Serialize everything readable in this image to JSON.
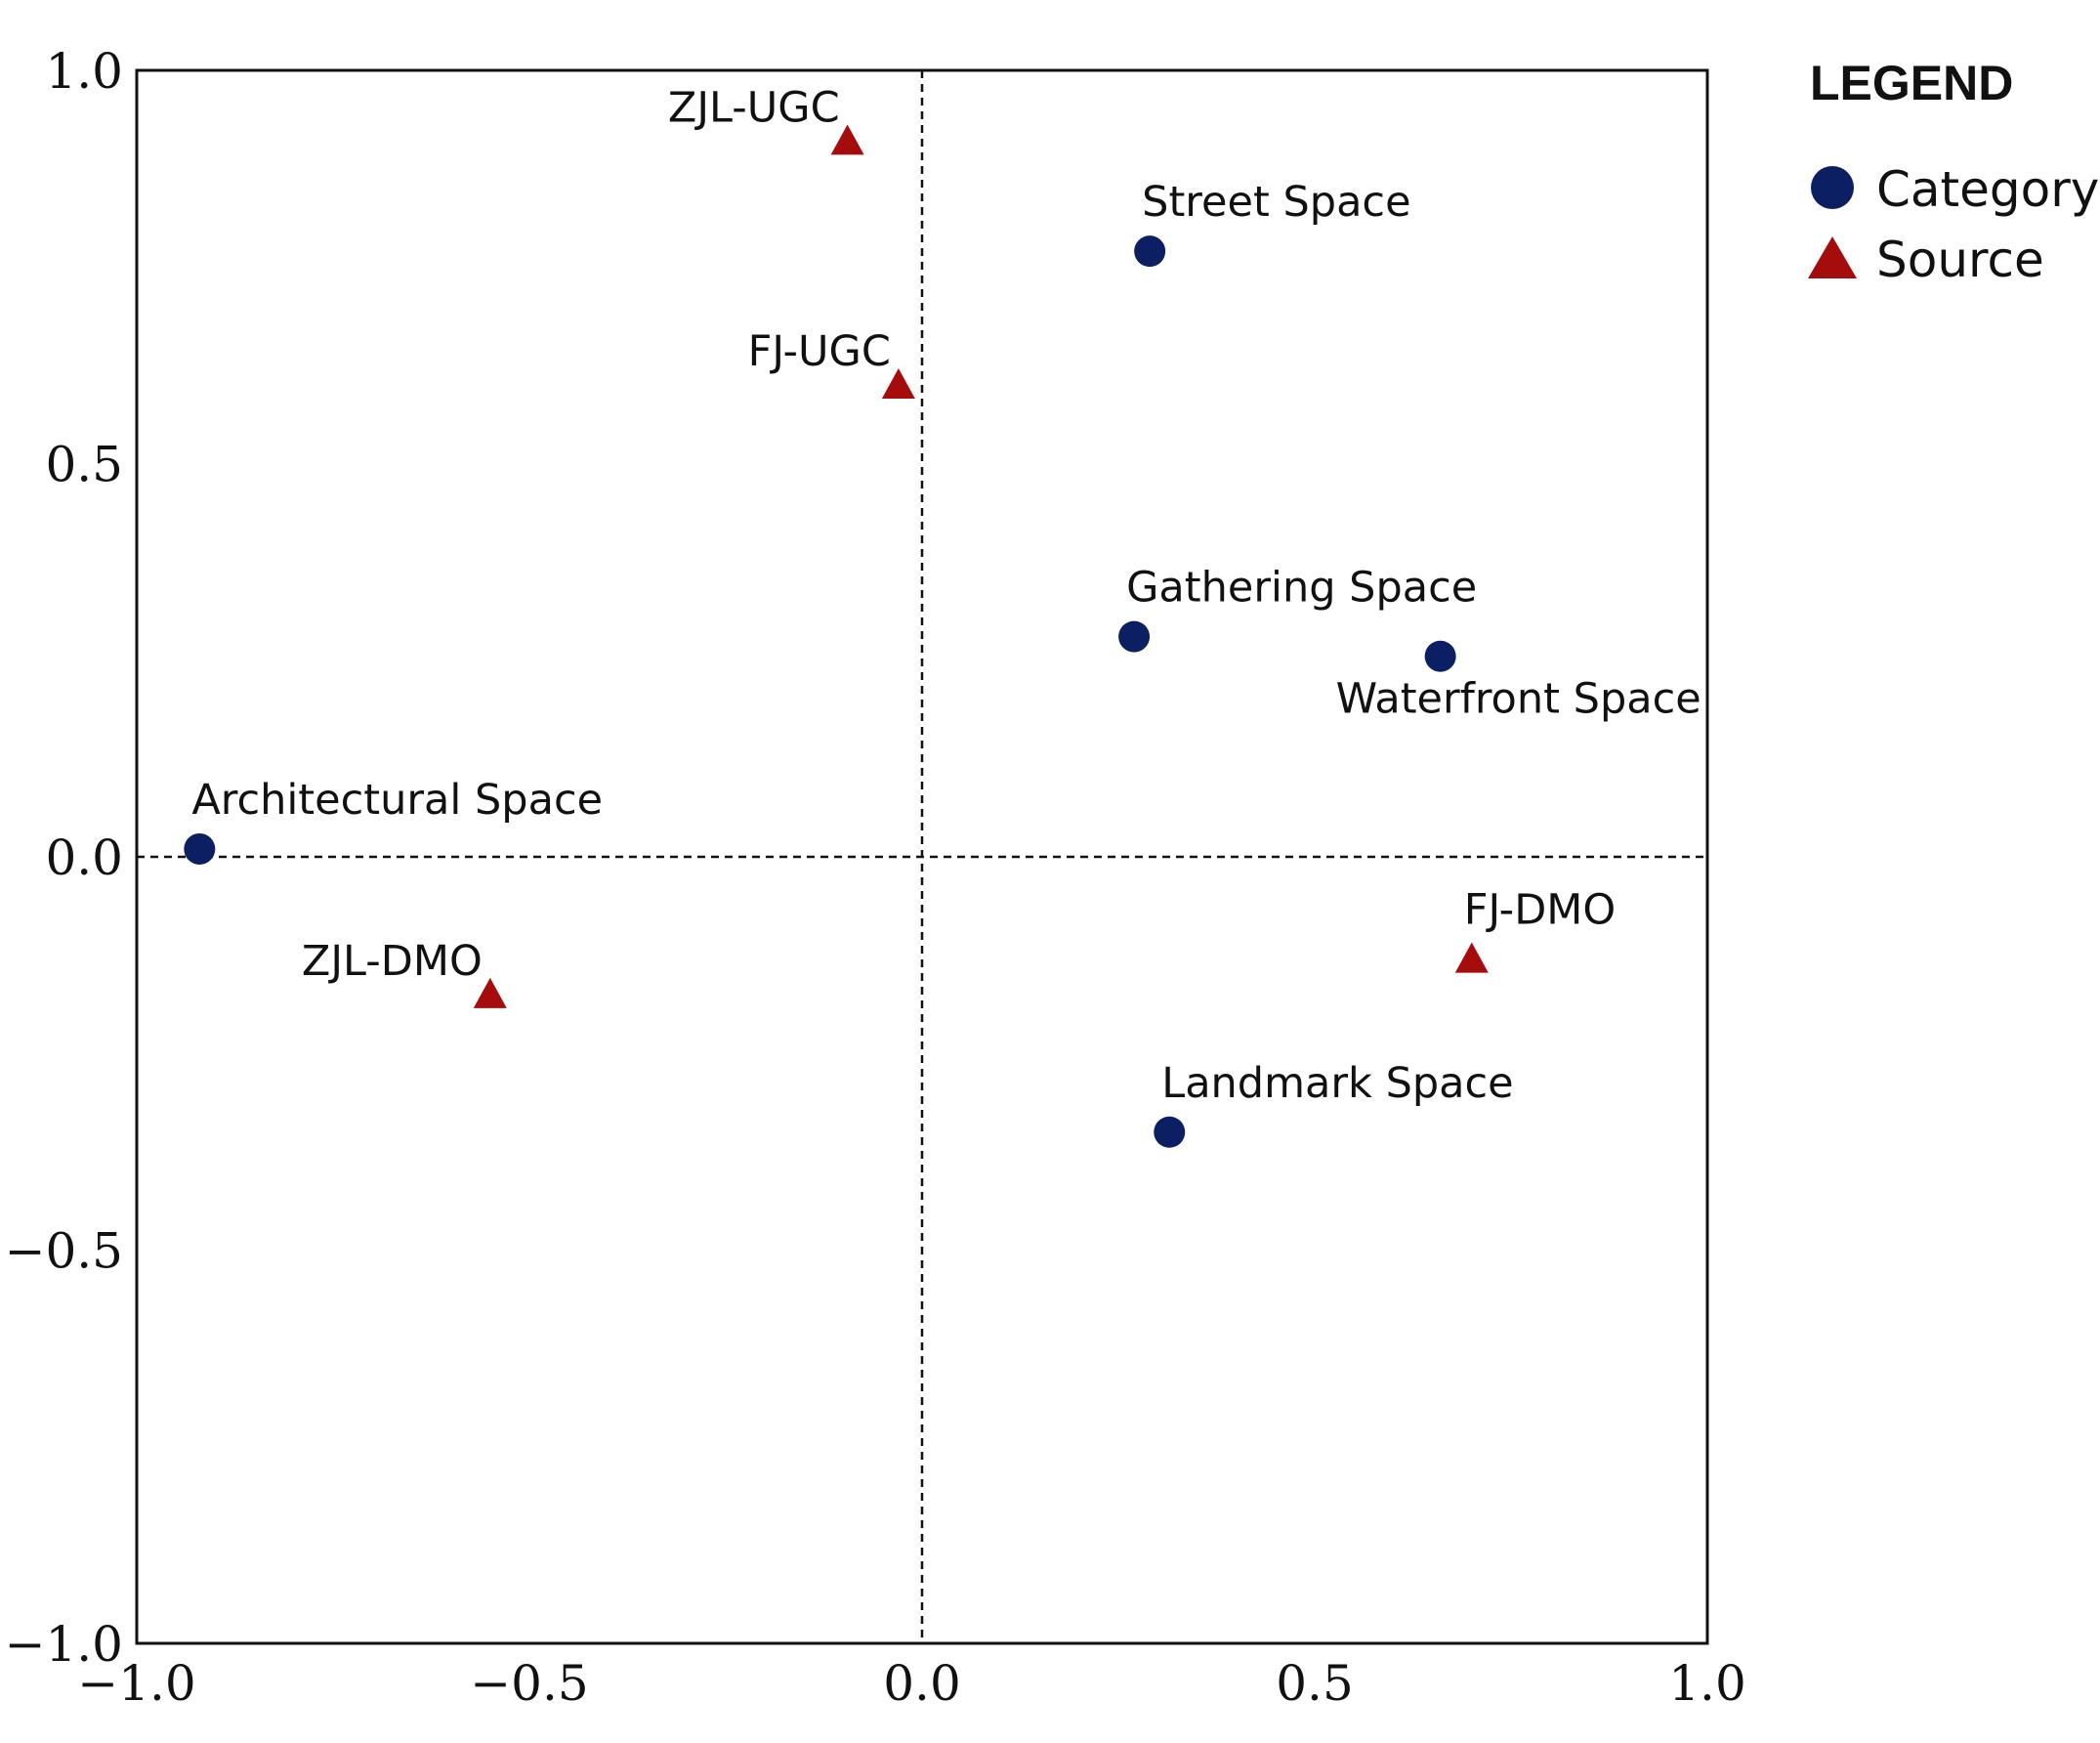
{
  "chart_data": {
    "type": "scatter",
    "title": "",
    "xlabel": "",
    "ylabel": "",
    "xlim": [
      -1.0,
      1.0
    ],
    "ylim": [
      -1.0,
      1.0
    ],
    "x_ticks": [
      -1.0,
      -0.5,
      0.0,
      0.5,
      1.0
    ],
    "y_ticks": [
      -1.0,
      -0.5,
      0.0,
      0.5,
      1.0
    ],
    "x_tick_labels": [
      "−1.0",
      "−0.5",
      "0.0",
      "0.5",
      "1.0"
    ],
    "y_tick_labels": [
      "−1.0",
      "−0.5",
      "0.0",
      "0.5",
      "1.0"
    ],
    "reference_lines": {
      "x": 0.0,
      "y": 0.0,
      "style": "dashed"
    },
    "grid": false,
    "legend": {
      "title": "LEGEND",
      "position": "top-right-outside",
      "entries": [
        {
          "label": "Category",
          "marker": "circle",
          "color": "#0d1f63"
        },
        {
          "label": "Source",
          "marker": "triangle",
          "color": "#a50d0d"
        }
      ]
    },
    "series": [
      {
        "name": "Category",
        "marker": "circle",
        "color": "#0d1f63",
        "points": [
          {
            "label": "Street Space",
            "x": 0.29,
            "y": 0.77,
            "label_position": "above"
          },
          {
            "label": "Gathering Space",
            "x": 0.27,
            "y": 0.28,
            "label_position": "above"
          },
          {
            "label": "Waterfront Space",
            "x": 0.66,
            "y": 0.255,
            "label_position": "below"
          },
          {
            "label": "Architectural Space",
            "x": -0.92,
            "y": 0.01,
            "label_position": "above"
          },
          {
            "label": "Landmark Space",
            "x": 0.315,
            "y": -0.35,
            "label_position": "above"
          }
        ]
      },
      {
        "name": "Source",
        "marker": "triangle",
        "color": "#a50d0d",
        "points": [
          {
            "label": "ZJL-UGC",
            "x": -0.095,
            "y": 0.91,
            "label_position": "above-left"
          },
          {
            "label": "FJ-UGC",
            "x": -0.03,
            "y": 0.6,
            "label_position": "above-left"
          },
          {
            "label": "ZJL-DMO",
            "x": -0.55,
            "y": -0.175,
            "label_position": "above-left"
          },
          {
            "label": "FJ-DMO",
            "x": 0.7,
            "y": -0.13,
            "label_position": "above"
          }
        ]
      }
    ]
  }
}
